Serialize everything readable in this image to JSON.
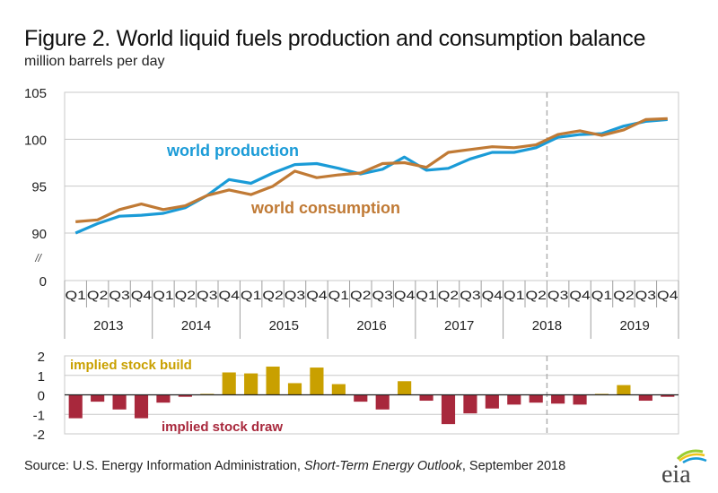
{
  "header": {
    "title": "Figure 2. World liquid fuels production and consumption balance",
    "subtitle": "million barrels per day"
  },
  "footer": {
    "source_prefix": "Source: U.S. Energy Information Administration, ",
    "source_publication": "Short-Term Energy Outlook",
    "source_suffix": ", September 2018",
    "logo_text": "eia"
  },
  "colors": {
    "production": "#1a9bd7",
    "consumption": "#c07a35",
    "build": "#c9a000",
    "draw": "#a8283c",
    "grid": "#c8c8c8",
    "forecast_divider": "#b0b0b0"
  },
  "chart_data": [
    {
      "type": "line",
      "title": "World liquid fuels production and consumption",
      "ylabel": "million barrels per day",
      "ylim": [
        90,
        105
      ],
      "yticks": [
        "105",
        "100",
        "95",
        "90",
        "0"
      ],
      "axis_break_label": "//",
      "grid": true,
      "forecast_start": "2018 Q3",
      "quarters": [
        "Q1",
        "Q2",
        "Q3",
        "Q4",
        "Q1",
        "Q2",
        "Q3",
        "Q4",
        "Q1",
        "Q2",
        "Q3",
        "Q4",
        "Q1",
        "Q2",
        "Q3",
        "Q4",
        "Q1",
        "Q2",
        "Q3",
        "Q4",
        "Q1",
        "Q2",
        "Q3",
        "Q4",
        "Q1",
        "Q2",
        "Q3",
        "Q4"
      ],
      "years": [
        "2013",
        "2014",
        "2015",
        "2016",
        "2017",
        "2018",
        "2019"
      ],
      "series": [
        {
          "name": "world production",
          "values": [
            90.0,
            91.0,
            91.8,
            91.9,
            92.1,
            92.7,
            94.0,
            95.7,
            95.3,
            96.4,
            97.3,
            97.4,
            96.9,
            96.3,
            96.8,
            98.1,
            96.7,
            96.9,
            97.9,
            98.6,
            98.6,
            99.1,
            100.2,
            100.5,
            100.6,
            101.4,
            101.9,
            102.1
          ]
        },
        {
          "name": "world consumption",
          "values": [
            91.2,
            91.4,
            92.5,
            93.1,
            92.5,
            92.9,
            94.0,
            94.6,
            94.1,
            95.0,
            96.6,
            95.9,
            96.2,
            96.4,
            97.4,
            97.5,
            97.0,
            98.6,
            98.9,
            99.2,
            99.1,
            99.4,
            100.5,
            100.9,
            100.4,
            101.0,
            102.1,
            102.2
          ]
        }
      ],
      "annotations": [
        "world production",
        "world consumption"
      ]
    },
    {
      "type": "bar",
      "title": "Implied stock change",
      "ylim": [
        -2,
        2
      ],
      "yticks": [
        "2",
        "1",
        "0",
        "-1",
        "-2"
      ],
      "grid": true,
      "forecast_start": "2018 Q3",
      "values": [
        -1.2,
        -0.35,
        -0.75,
        -1.2,
        -0.4,
        -0.1,
        0.05,
        1.15,
        1.1,
        1.45,
        0.6,
        1.4,
        0.55,
        -0.35,
        -0.75,
        0.7,
        -0.3,
        -1.5,
        -0.95,
        -0.7,
        -0.5,
        -0.4,
        -0.45,
        -0.5,
        0.05,
        0.5,
        -0.3,
        -0.1
      ],
      "annotations": [
        "implied stock   build",
        "implied stock  draw"
      ]
    }
  ]
}
